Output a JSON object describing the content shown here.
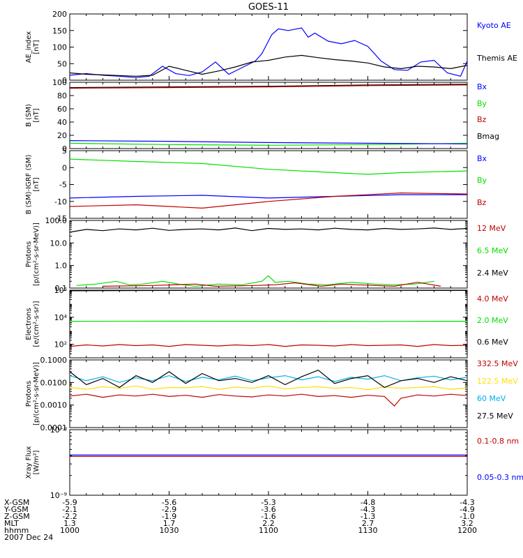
{
  "title": "GOES-11",
  "colors": {
    "black": "#000000",
    "blue": "#0000ff",
    "green": "#00e000",
    "red": "#c00000",
    "cyan": "#00b0e8",
    "yellow": "#ffdf00",
    "grid": "#000000"
  },
  "x_axis": {
    "tick_labels": [
      "1000",
      "1030",
      "1100",
      "1130",
      "1200"
    ],
    "minutes": [
      0,
      30,
      60,
      90,
      120
    ],
    "minor_step_min": 5
  },
  "footer": {
    "rows": [
      {
        "label": "X-GSM",
        "values": [
          "-5.9",
          "-5.6",
          "-5.3",
          "-4.8",
          "-4.3"
        ]
      },
      {
        "label": "Y-GSM",
        "values": [
          "-2.1",
          "-2.9",
          "-3.6",
          "-4.3",
          "-4.9"
        ]
      },
      {
        "label": "Z-GSM",
        "values": [
          "-2.2",
          "-1.9",
          "-1.6",
          "-1.3",
          "-1.0"
        ]
      },
      {
        "label": "MLT",
        "values": [
          "1.3",
          "1.7",
          "2.2",
          "2.7",
          "3.2"
        ]
      },
      {
        "label": "hhmm",
        "values": [
          "1000",
          "1030",
          "1100",
          "1130",
          "1200"
        ]
      }
    ],
    "date": "2007 Dec 24"
  },
  "chart_data": [
    {
      "type": "line",
      "panel": "ae",
      "ylabel": [
        "AE_index",
        "[nT]"
      ],
      "ylim": [
        0,
        200
      ],
      "yticks": [
        0,
        50,
        100,
        150,
        200
      ],
      "ytick_labels": [
        "0",
        "50",
        "100",
        "150",
        "200"
      ],
      "scale": "linear",
      "legend": [
        {
          "text": "Kyoto AE",
          "color": "#0000ff"
        },
        {
          "text": "Themis AE",
          "color": "#000000"
        }
      ],
      "series": [
        {
          "name": "Kyoto AE",
          "color": "#0000ff",
          "x": [
            0,
            5,
            10,
            15,
            20,
            24,
            28,
            32,
            36,
            40,
            44,
            48,
            52,
            56,
            58,
            61,
            63,
            66,
            70,
            72,
            74,
            78,
            82,
            86,
            90,
            94,
            98,
            102,
            106,
            110,
            114,
            118,
            120
          ],
          "y": [
            15,
            20,
            15,
            12,
            8,
            12,
            42,
            20,
            14,
            25,
            55,
            18,
            38,
            58,
            80,
            138,
            155,
            150,
            158,
            130,
            142,
            118,
            110,
            120,
            102,
            58,
            32,
            30,
            55,
            60,
            22,
            12,
            58
          ]
        },
        {
          "name": "Themis AE",
          "color": "#000000",
          "x": [
            0,
            5,
            10,
            15,
            20,
            25,
            30,
            35,
            40,
            45,
            50,
            55,
            60,
            65,
            70,
            75,
            80,
            85,
            90,
            95,
            100,
            105,
            110,
            115,
            120
          ],
          "y": [
            22,
            18,
            16,
            14,
            12,
            15,
            42,
            30,
            18,
            28,
            40,
            55,
            60,
            70,
            75,
            68,
            62,
            58,
            52,
            40,
            35,
            42,
            40,
            35,
            45
          ]
        }
      ]
    },
    {
      "type": "line",
      "panel": "bsm",
      "ylabel": [
        "B (SM)",
        "[nT]"
      ],
      "ylim": [
        0,
        100
      ],
      "yticks": [
        0,
        20,
        40,
        60,
        80,
        100
      ],
      "ytick_labels": [
        "0",
        "20",
        "40",
        "60",
        "80",
        "100"
      ],
      "scale": "linear",
      "legend": [
        {
          "text": "Bx",
          "color": "#0000ff"
        },
        {
          "text": "By",
          "color": "#00e000"
        },
        {
          "text": "Bz",
          "color": "#c00000"
        },
        {
          "text": "Bmag",
          "color": "#000000"
        }
      ],
      "series": [
        {
          "name": "Bmag",
          "color": "#000000",
          "x": [
            0,
            30,
            60,
            90,
            120
          ],
          "y": [
            92,
            93,
            94,
            96,
            97
          ]
        },
        {
          "name": "Bz",
          "color": "#c00000",
          "x": [
            0,
            30,
            60,
            90,
            120
          ],
          "y": [
            91,
            92,
            93,
            95,
            96
          ]
        },
        {
          "name": "By",
          "color": "#00e000",
          "x": [
            0,
            30,
            60,
            90,
            120
          ],
          "y": [
            8,
            6,
            5,
            6,
            8
          ]
        },
        {
          "name": "Bx",
          "color": "#0000ff",
          "x": [
            0,
            30,
            60,
            90,
            120
          ],
          "y": [
            12,
            11,
            9,
            8,
            7
          ]
        }
      ]
    },
    {
      "type": "line",
      "panel": "dbsm",
      "ylabel": [
        "B (SM)-IGRF (SM)",
        "[nT]"
      ],
      "ylim": [
        -15,
        5
      ],
      "yticks": [
        -15,
        -10,
        -5,
        0,
        5
      ],
      "ytick_labels": [
        "-15",
        "-10",
        "-5",
        "0",
        "5"
      ],
      "scale": "linear",
      "legend": [
        {
          "text": "Bx",
          "color": "#0000ff"
        },
        {
          "text": "By",
          "color": "#00e000"
        },
        {
          "text": "Bz",
          "color": "#c00000"
        }
      ],
      "series": [
        {
          "name": "By",
          "color": "#00e000",
          "x": [
            0,
            20,
            40,
            60,
            80,
            90,
            100,
            120
          ],
          "y": [
            2.5,
            1.8,
            1.2,
            -0.5,
            -1.5,
            -2,
            -1.5,
            -1
          ]
        },
        {
          "name": "Bx",
          "color": "#0000ff",
          "x": [
            0,
            20,
            40,
            60,
            80,
            100,
            120
          ],
          "y": [
            -9,
            -8.5,
            -8.2,
            -9,
            -8.5,
            -8,
            -8
          ]
        },
        {
          "name": "Bz",
          "color": "#c00000",
          "x": [
            0,
            20,
            40,
            60,
            80,
            100,
            120
          ],
          "y": [
            -11.5,
            -11,
            -12,
            -10,
            -8.5,
            -7.5,
            -7.8
          ]
        }
      ]
    },
    {
      "type": "line",
      "panel": "protons_hi",
      "ylabel": [
        "Protons",
        "[p/(cm²-s-sr-MeV)]"
      ],
      "ylim": [
        0.1,
        100
      ],
      "yticks": [
        0.1,
        1,
        10,
        100
      ],
      "ytick_labels": [
        "0.1",
        "1.0",
        "10.0",
        "100.0"
      ],
      "scale": "log",
      "legend": [
        {
          "text": "12 MeV",
          "color": "#c00000"
        },
        {
          "text": "6.5 MeV",
          "color": "#00e000"
        },
        {
          "text": "2.4 MeV",
          "color": "#000000"
        }
      ],
      "series": [
        {
          "name": "2.4 MeV",
          "color": "#000000",
          "x": [
            0,
            5,
            10,
            15,
            20,
            25,
            30,
            35,
            40,
            45,
            50,
            55,
            60,
            65,
            70,
            75,
            80,
            85,
            90,
            95,
            100,
            105,
            110,
            115,
            120
          ],
          "y": [
            30,
            40,
            35,
            42,
            38,
            45,
            36,
            40,
            42,
            38,
            46,
            35,
            44,
            40,
            42,
            38,
            45,
            40,
            38,
            44,
            40,
            42,
            46,
            40,
            44
          ]
        },
        {
          "name": "6.5 MeV",
          "color": "#00e000",
          "x": [
            2,
            8,
            14,
            18,
            22,
            28,
            34,
            38,
            45,
            52,
            58,
            60,
            62,
            66,
            72,
            78,
            85,
            92,
            98,
            104,
            110
          ],
          "y": [
            0.13,
            0.15,
            0.2,
            0.14,
            0.15,
            0.2,
            0.14,
            0.12,
            0.15,
            0.14,
            0.2,
            0.35,
            0.18,
            0.2,
            0.15,
            0.14,
            0.18,
            0.15,
            0.14,
            0.15,
            0.2
          ]
        },
        {
          "name": "12 MeV",
          "color": "#c00000",
          "x": [
            10,
            25,
            38,
            44,
            56,
            62,
            68,
            76,
            82,
            98,
            105,
            112
          ],
          "y": [
            0.12,
            0.13,
            0.15,
            0.12,
            0.13,
            0.14,
            0.17,
            0.12,
            0.15,
            0.12,
            0.18,
            0.12
          ]
        }
      ]
    },
    {
      "type": "line",
      "panel": "electrons",
      "ylabel": [
        "Electrons",
        "[e/(cm²-s-sr)]"
      ],
      "ylim": [
        10,
        1000000
      ],
      "yticks": [
        100,
        10000,
        1000000
      ],
      "ytick_labels": [
        "10²",
        "10⁴",
        "10⁶"
      ],
      "scale": "log",
      "legend": [
        {
          "text": "4.0 MeV",
          "color": "#c00000"
        },
        {
          "text": "2.0 MeV",
          "color": "#00e000"
        },
        {
          "text": "0.6 MeV",
          "color": "#000000"
        }
      ],
      "series": [
        {
          "name": "0.6 MeV",
          "color": "#000000",
          "x": [
            0,
            30,
            60,
            90,
            120
          ],
          "y": [
            900000,
            950000,
            1000000,
            980000,
            950000
          ]
        },
        {
          "name": "2.0 MeV",
          "color": "#00e000",
          "x": [
            0,
            30,
            60,
            90,
            120
          ],
          "y": [
            5000,
            5100,
            5000,
            4900,
            5000
          ]
        },
        {
          "name": "4.0 MeV",
          "color": "#c00000",
          "x": [
            0,
            5,
            10,
            15,
            20,
            25,
            30,
            35,
            40,
            45,
            50,
            55,
            60,
            65,
            70,
            75,
            80,
            85,
            90,
            95,
            100,
            105,
            110,
            115,
            120
          ],
          "y": [
            70,
            90,
            75,
            95,
            80,
            90,
            70,
            95,
            85,
            75,
            90,
            80,
            95,
            70,
            90,
            85,
            75,
            95,
            80,
            85,
            90,
            70,
            95,
            80,
            85
          ]
        }
      ]
    },
    {
      "type": "line",
      "panel": "protons_lo",
      "ylabel": [
        "Protons",
        "[p/(cm²-s-sr-MeV)]"
      ],
      "ylim": [
        0.0001,
        0.1
      ],
      "yticks": [
        0.0001,
        0.001,
        0.01,
        0.1
      ],
      "ytick_labels": [
        "0.0001",
        "0.0010",
        "0.0100",
        "0.1000"
      ],
      "scale": "log",
      "legend": [
        {
          "text": "332.5 MeV",
          "color": "#c00000"
        },
        {
          "text": "122.5 MeV",
          "color": "#ffdf00"
        },
        {
          "text": "60 MeV",
          "color": "#00b0e8"
        },
        {
          "text": "27.5 MeV",
          "color": "#000000"
        }
      ],
      "series": [
        {
          "name": "60 MeV",
          "color": "#00b0e8",
          "x": [
            0,
            5,
            10,
            15,
            20,
            25,
            30,
            35,
            40,
            45,
            50,
            55,
            60,
            65,
            70,
            75,
            80,
            85,
            90,
            95,
            100,
            105,
            110,
            115,
            120
          ],
          "y": [
            0.02,
            0.012,
            0.018,
            0.01,
            0.016,
            0.012,
            0.02,
            0.011,
            0.017,
            0.013,
            0.019,
            0.012,
            0.016,
            0.02,
            0.013,
            0.018,
            0.011,
            0.017,
            0.014,
            0.02,
            0.012,
            0.016,
            0.019,
            0.013,
            0.017
          ]
        },
        {
          "name": "122.5 MeV",
          "color": "#ffdf00",
          "x": [
            0,
            5,
            10,
            15,
            20,
            25,
            30,
            35,
            40,
            45,
            50,
            55,
            60,
            65,
            70,
            75,
            80,
            85,
            90,
            95,
            100,
            105,
            110,
            115,
            120
          ],
          "y": [
            0.006,
            0.005,
            0.0065,
            0.0055,
            0.007,
            0.005,
            0.006,
            0.0058,
            0.0066,
            0.005,
            0.0062,
            0.0055,
            0.007,
            0.0052,
            0.006,
            0.0065,
            0.0055,
            0.006,
            0.0048,
            0.0062,
            0.0055,
            0.006,
            0.0065,
            0.005,
            0.0058
          ]
        },
        {
          "name": "332.5 MeV",
          "color": "#c00000",
          "x": [
            0,
            5,
            10,
            15,
            20,
            25,
            30,
            35,
            40,
            45,
            50,
            55,
            60,
            65,
            70,
            75,
            80,
            85,
            90,
            95,
            98,
            100,
            105,
            110,
            115,
            120
          ],
          "y": [
            0.0025,
            0.003,
            0.0022,
            0.0028,
            0.0025,
            0.003,
            0.0024,
            0.0027,
            0.0022,
            0.0029,
            0.0025,
            0.0023,
            0.0028,
            0.0025,
            0.003,
            0.0024,
            0.0026,
            0.0022,
            0.0027,
            0.0024,
            0.0009,
            0.002,
            0.0028,
            0.0025,
            0.003,
            0.0026
          ]
        },
        {
          "name": "27.5 MeV",
          "color": "#000000",
          "x": [
            0,
            5,
            10,
            15,
            20,
            25,
            30,
            35,
            40,
            45,
            50,
            55,
            60,
            65,
            70,
            75,
            80,
            85,
            90,
            95,
            100,
            105,
            110,
            115,
            120
          ],
          "y": [
            0.03,
            0.008,
            0.015,
            0.006,
            0.02,
            0.01,
            0.03,
            0.009,
            0.025,
            0.012,
            0.015,
            0.01,
            0.02,
            0.008,
            0.018,
            0.035,
            0.009,
            0.015,
            0.02,
            0.006,
            0.012,
            0.015,
            0.01,
            0.018,
            0.012
          ]
        }
      ]
    },
    {
      "type": "line",
      "panel": "xray",
      "ylabel": [
        "Xray Flux",
        "[W/m²]"
      ],
      "ylim": [
        1e-09,
        1e-08
      ],
      "yticks": [
        1e-09,
        1e-08
      ],
      "ytick_labels": [
        "10⁻⁹",
        "10⁻⁸"
      ],
      "scale": "log",
      "legend": [
        {
          "text": "0.1-0.8 nm",
          "color": "#c00000"
        },
        {
          "text": "0.05-0.3 nm",
          "color": "#0000ff"
        }
      ],
      "series": [
        {
          "name": "0.05-0.3 nm",
          "color": "#0000ff",
          "x": [
            0,
            30,
            60,
            90,
            120
          ],
          "y": [
            4.1e-09,
            4.1e-09,
            4.1e-09,
            4.1e-09,
            4.1e-09
          ]
        },
        {
          "name": "0.1-0.8 nm",
          "color": "#c00000",
          "x": [
            0,
            30,
            60,
            90,
            120
          ],
          "y": [
            3.9e-09,
            3.9e-09,
            3.9e-09,
            3.9e-09,
            3.9e-09
          ]
        }
      ]
    }
  ]
}
